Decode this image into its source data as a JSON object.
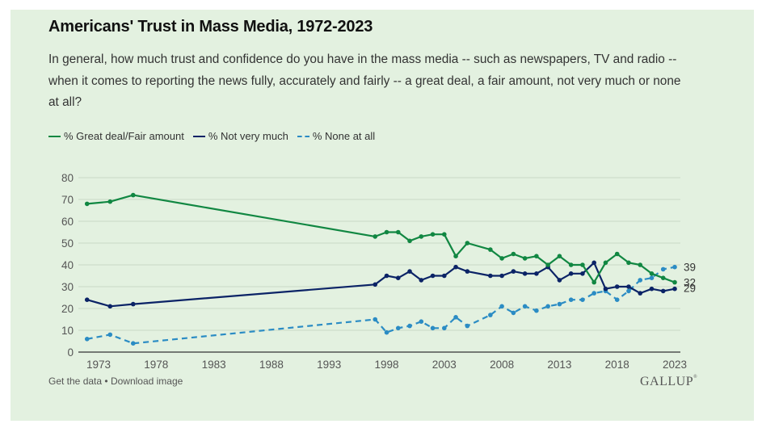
{
  "header": {
    "title": "Americans' Trust in Mass Media, 1972-2023",
    "subtitle": "In general, how much trust and confidence do you have in the mass media -- such as newspapers, TV and radio -- when it comes to reporting the news fully, accurately and fairly -- a great deal, a fair amount, not very much or none at all?"
  },
  "footer": {
    "get_data": "Get the data",
    "separator": "•",
    "download": "Download image",
    "brand": "GALLUP"
  },
  "colors": {
    "background": "#e3f1e0",
    "great_fair": "#118742",
    "not_very_much": "#0b2366",
    "none_at_all": "#2b8cc4"
  },
  "chart_data": {
    "type": "line",
    "title": "Americans' Trust in Mass Media, 1972-2023",
    "xlabel": "",
    "ylabel": "",
    "ylim": [
      0,
      80
    ],
    "xlim": [
      1971.5,
      2023.5
    ],
    "yticks": [
      0,
      10,
      20,
      30,
      40,
      50,
      60,
      70,
      80
    ],
    "xticks": [
      1973,
      1978,
      1983,
      1988,
      1993,
      1998,
      2003,
      2008,
      2013,
      2018,
      2023
    ],
    "grid": true,
    "legend_position": "top-left",
    "x": [
      1972,
      1974,
      1976,
      1997,
      1998,
      1999,
      2000,
      2001,
      2002,
      2003,
      2004,
      2005,
      2007,
      2008,
      2009,
      2010,
      2011,
      2012,
      2013,
      2014,
      2015,
      2016,
      2017,
      2018,
      2019,
      2020,
      2021,
      2022,
      2023
    ],
    "series": [
      {
        "key": "great_fair",
        "name": "% Great deal/Fair amount",
        "style": "solid",
        "end_label": "32",
        "values": [
          68,
          69,
          72,
          53,
          55,
          55,
          51,
          53,
          54,
          54,
          44,
          50,
          47,
          43,
          45,
          43,
          44,
          40,
          44,
          40,
          40,
          32,
          41,
          45,
          41,
          40,
          36,
          34,
          32
        ]
      },
      {
        "key": "not_very_much",
        "name": "% Not very much",
        "style": "solid",
        "end_label": "29",
        "values": [
          24,
          21,
          22,
          31,
          35,
          34,
          37,
          33,
          35,
          35,
          39,
          37,
          35,
          35,
          37,
          36,
          36,
          39,
          33,
          36,
          36,
          41,
          29,
          30,
          30,
          27,
          29,
          28,
          29
        ]
      },
      {
        "key": "none_at_all",
        "name": "% None at all",
        "style": "dashed",
        "end_label": "39",
        "values": [
          6,
          8,
          4,
          15,
          9,
          11,
          12,
          14,
          11,
          11,
          16,
          12,
          17,
          21,
          18,
          21,
          19,
          21,
          22,
          24,
          24,
          27,
          28,
          24,
          28,
          33,
          34,
          38,
          39
        ]
      }
    ]
  }
}
